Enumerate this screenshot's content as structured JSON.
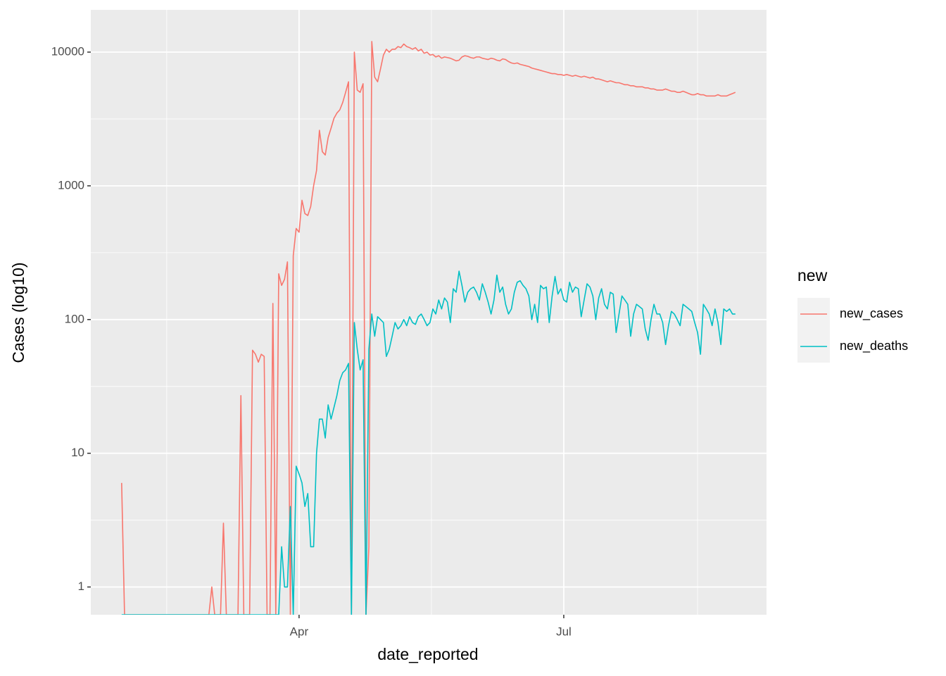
{
  "chart_data": {
    "type": "line",
    "x_label": "date_reported",
    "y_label": "Cases (log10)",
    "legend_title": "new",
    "log_y": true,
    "grid": true,
    "legend_position": "right",
    "xlim": [
      20.4,
      252.7
    ],
    "xticks": [
      {
        "value": 92,
        "label": "Apr"
      },
      {
        "value": 183,
        "label": "Jul"
      }
    ],
    "x_minor_ticks": [
      46.5,
      137.5,
      229
    ],
    "ylim": [
      0.62,
      20700
    ],
    "yticks": [
      1,
      10,
      100,
      1000,
      10000
    ],
    "y_minor_ticks": [
      3.16,
      31.6,
      316,
      3162
    ],
    "x": [
      31,
      32,
      33,
      34,
      35,
      36,
      37,
      38,
      39,
      40,
      41,
      42,
      43,
      44,
      45,
      46,
      47,
      48,
      49,
      50,
      51,
      52,
      53,
      54,
      55,
      56,
      57,
      58,
      59,
      60,
      61,
      62,
      63,
      64,
      65,
      66,
      67,
      68,
      69,
      70,
      71,
      72,
      73,
      74,
      75,
      76,
      77,
      78,
      79,
      80,
      81,
      82,
      83,
      84,
      85,
      86,
      87,
      88,
      89,
      90,
      91,
      92,
      93,
      94,
      95,
      96,
      97,
      98,
      99,
      100,
      101,
      102,
      103,
      104,
      105,
      106,
      107,
      108,
      109,
      110,
      111,
      112,
      113,
      114,
      115,
      116,
      117,
      118,
      119,
      120,
      121,
      122,
      123,
      124,
      125,
      126,
      127,
      128,
      129,
      130,
      131,
      132,
      133,
      134,
      135,
      136,
      137,
      138,
      139,
      140,
      141,
      142,
      143,
      144,
      145,
      146,
      147,
      148,
      149,
      150,
      151,
      152,
      153,
      154,
      155,
      156,
      157,
      158,
      159,
      160,
      161,
      162,
      163,
      164,
      165,
      166,
      167,
      168,
      169,
      170,
      171,
      172,
      173,
      174,
      175,
      176,
      177,
      178,
      179,
      180,
      181,
      182,
      183,
      184,
      185,
      186,
      187,
      188,
      189,
      190,
      191,
      192,
      193,
      194,
      195,
      196,
      197,
      198,
      199,
      200,
      201,
      202,
      203,
      204,
      205,
      206,
      207,
      208,
      209,
      210,
      211,
      212,
      213,
      214,
      215,
      216,
      217,
      218,
      219,
      220,
      221,
      222,
      223,
      224,
      225,
      226,
      227,
      228,
      229,
      230,
      231,
      232,
      233,
      234,
      235,
      236,
      237,
      238,
      239,
      240,
      241,
      242
    ],
    "series": [
      {
        "name": "new_cases",
        "color": "#F8766D",
        "values": [
          6,
          0,
          0,
          0,
          0,
          0,
          0,
          0,
          0,
          0,
          0,
          0,
          0,
          0,
          0,
          0,
          0,
          0,
          0,
          0,
          0,
          0,
          0,
          0,
          0,
          0,
          0,
          0,
          0,
          0,
          0,
          1,
          0,
          0,
          0,
          3,
          0,
          0,
          0,
          0,
          0,
          27,
          0,
          0,
          0,
          59,
          55,
          48,
          55,
          53,
          0,
          0,
          132,
          0,
          220,
          180,
          200,
          270,
          0,
          300,
          480,
          450,
          780,
          620,
          600,
          700,
          1000,
          1300,
          2600,
          1800,
          1700,
          2300,
          2700,
          3200,
          3500,
          3700,
          4200,
          5000,
          6000,
          0,
          10000,
          5200,
          5000,
          5800,
          0,
          2,
          12000,
          6500,
          6000,
          7500,
          9500,
          10500,
          10000,
          10500,
          10500,
          11000,
          10800,
          11500,
          11000,
          10800,
          10500,
          10800,
          10200,
          10500,
          9800,
          10000,
          9500,
          9600,
          9200,
          9400,
          9000,
          9200,
          9100,
          9000,
          8800,
          8600,
          8700,
          9200,
          9400,
          9300,
          9100,
          9000,
          9200,
          9200,
          9000,
          8900,
          8800,
          9000,
          8900,
          8700,
          8600,
          8900,
          8800,
          8500,
          8300,
          8200,
          8300,
          8100,
          8000,
          7900,
          7800,
          7600,
          7500,
          7400,
          7300,
          7200,
          7100,
          7000,
          6900,
          6900,
          6800,
          6800,
          6700,
          6800,
          6700,
          6600,
          6700,
          6600,
          6500,
          6600,
          6500,
          6400,
          6500,
          6300,
          6300,
          6200,
          6100,
          6000,
          6100,
          6000,
          5900,
          5900,
          5800,
          5700,
          5700,
          5600,
          5600,
          5500,
          5500,
          5500,
          5400,
          5400,
          5300,
          5300,
          5200,
          5200,
          5200,
          5300,
          5200,
          5100,
          5100,
          5000,
          5000,
          5100,
          5000,
          4900,
          4800,
          4800,
          4900,
          4800,
          4800,
          4700,
          4700,
          4700,
          4700,
          4800,
          4700,
          4700,
          4700,
          4800,
          4900,
          5000
        ]
      },
      {
        "name": "new_deaths",
        "color": "#00BFC4",
        "values": [
          0,
          0,
          0,
          0,
          0,
          0,
          0,
          0,
          0,
          0,
          0,
          0,
          0,
          0,
          0,
          0,
          0,
          0,
          0,
          0,
          0,
          0,
          0,
          0,
          0,
          0,
          0,
          0,
          0,
          0,
          0,
          0,
          0,
          0,
          0,
          0,
          0,
          0,
          0,
          0,
          0,
          0,
          0,
          0,
          0,
          0,
          0,
          0,
          0,
          0,
          0,
          0,
          0,
          0,
          0,
          2,
          1,
          1,
          4,
          0,
          8,
          7,
          6,
          4,
          5,
          2,
          2,
          10,
          18,
          18,
          13,
          23,
          18,
          22,
          27,
          35,
          40,
          42,
          47,
          0,
          95,
          60,
          42,
          50,
          0,
          60,
          110,
          75,
          105,
          100,
          95,
          53,
          60,
          75,
          95,
          85,
          90,
          100,
          90,
          105,
          95,
          92,
          105,
          110,
          100,
          90,
          95,
          120,
          110,
          140,
          120,
          145,
          135,
          95,
          170,
          160,
          230,
          180,
          135,
          160,
          170,
          175,
          160,
          140,
          185,
          160,
          135,
          110,
          140,
          215,
          160,
          175,
          130,
          110,
          120,
          160,
          190,
          195,
          180,
          170,
          150,
          100,
          130,
          95,
          180,
          170,
          175,
          95,
          150,
          210,
          155,
          170,
          140,
          135,
          190,
          160,
          175,
          170,
          105,
          140,
          185,
          175,
          150,
          100,
          145,
          170,
          130,
          120,
          160,
          155,
          80,
          110,
          150,
          140,
          130,
          75,
          110,
          130,
          125,
          120,
          85,
          70,
          100,
          130,
          110,
          110,
          95,
          65,
          90,
          115,
          110,
          100,
          90,
          130,
          125,
          120,
          115,
          95,
          80,
          55,
          130,
          120,
          110,
          90,
          120,
          95,
          65,
          120,
          115,
          120,
          110,
          110
        ]
      }
    ]
  }
}
